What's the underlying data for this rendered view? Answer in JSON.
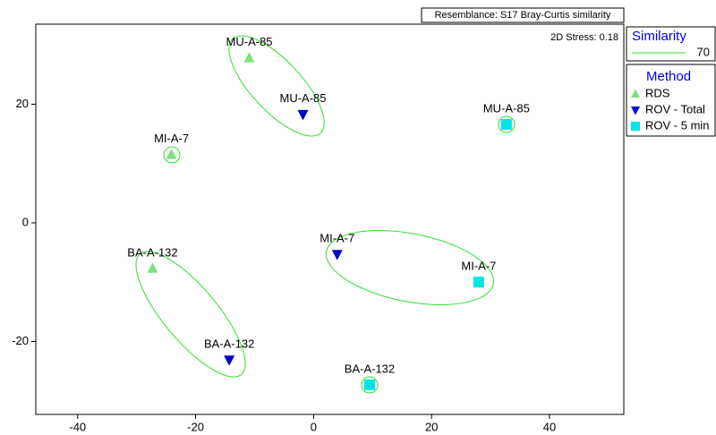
{
  "chart_data": {
    "type": "scatter",
    "resemblance": "Resemblance: S17 Bray-Curtis similarity",
    "stress": "2D Stress: 0.18",
    "similarity": {
      "title": "Similarity",
      "level": 70,
      "color": "#33dd33"
    },
    "legend_title": "Method",
    "xlim": [
      -47.1,
      52.6
    ],
    "ylim": [
      -32.3,
      33.5
    ],
    "xticks": [
      -40,
      -20,
      0,
      20,
      40
    ],
    "yticks": [
      -20,
      0,
      20
    ],
    "series": [
      {
        "name": "RDS",
        "color": "#80e080",
        "marker": "triangle-up",
        "x": [
          -10.9,
          -24.1,
          -27.3
        ],
        "values": [
          27.8,
          11.5,
          -7.7
        ],
        "labels": [
          "MU-A-85",
          "MI-A-7",
          "BA-A-132"
        ]
      },
      {
        "name": "ROV - Total",
        "color": "#0000cc",
        "marker": "triangle-down",
        "x": [
          -1.8,
          4.0,
          -14.3
        ],
        "values": [
          18.3,
          -5.3,
          -23.1
        ],
        "labels": [
          "MU-A-85",
          "MI-A-7",
          "BA-A-132"
        ]
      },
      {
        "name": "ROV - 5 min",
        "color": "#00e5e5",
        "marker": "square",
        "x": [
          32.7,
          28.0,
          9.5
        ],
        "values": [
          16.6,
          -10.0,
          -27.3
        ],
        "labels": [
          "MU-A-85",
          "MI-A-7",
          "BA-A-132"
        ]
      }
    ]
  }
}
